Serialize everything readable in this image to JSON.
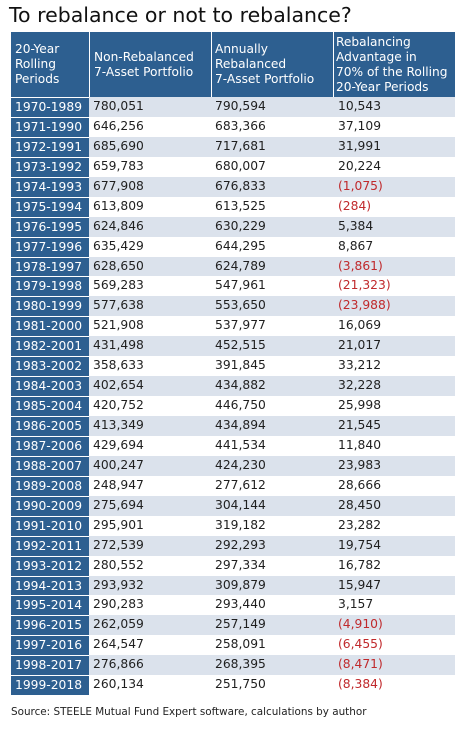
{
  "title": "To rebalance or not to rebalance?",
  "chart_data": {
    "type": "table",
    "columns": [
      "20-Year Rolling Periods",
      "Non-Rebalanced 7-Asset Portfolio",
      "Annually Rebalanced 7-Asset Portfolio",
      "Rebalancing Advantage in 70% of the Rolling 20-Year Periods"
    ],
    "header_lines": [
      [
        "20-Year",
        "Rolling",
        "Periods"
      ],
      [
        "Non-Rebalanced",
        "7-Asset Portfolio"
      ],
      [
        "Annually",
        "Rebalanced",
        "7-Asset Portfolio"
      ],
      [
        "Rebalancing",
        "Advantage in",
        "70% of the Rolling",
        "20-Year Periods"
      ]
    ],
    "rows": [
      [
        "1970-1989",
        "780,051",
        "790,594",
        "10,543"
      ],
      [
        "1971-1990",
        "646,256",
        "683,366",
        "37,109"
      ],
      [
        "1972-1991",
        "685,690",
        "717,681",
        "31,991"
      ],
      [
        "1973-1992",
        "659,783",
        "680,007",
        "20,224"
      ],
      [
        "1974-1993",
        "677,908",
        "676,833",
        "(1,075)"
      ],
      [
        "1975-1994",
        "613,809",
        "613,525",
        "(284)"
      ],
      [
        "1976-1995",
        "624,846",
        "630,229",
        "5,384"
      ],
      [
        "1977-1996",
        "635,429",
        "644,295",
        "8,867"
      ],
      [
        "1978-1997",
        "628,650",
        "624,789",
        "(3,861)"
      ],
      [
        "1979-1998",
        "569,283",
        "547,961",
        "(21,323)"
      ],
      [
        "1980-1999",
        "577,638",
        "553,650",
        "(23,988)"
      ],
      [
        "1981-2000",
        "521,908",
        "537,977",
        "16,069"
      ],
      [
        "1982-2001",
        "431,498",
        "452,515",
        "21,017"
      ],
      [
        "1983-2002",
        "358,633",
        "391,845",
        "33,212"
      ],
      [
        "1984-2003",
        "402,654",
        "434,882",
        "32,228"
      ],
      [
        "1985-2004",
        "420,752",
        "446,750",
        "25,998"
      ],
      [
        "1986-2005",
        "413,349",
        "434,894",
        "21,545"
      ],
      [
        "1987-2006",
        "429,694",
        "441,534",
        "11,840"
      ],
      [
        "1988-2007",
        "400,247",
        "424,230",
        "23,983"
      ],
      [
        "1989-2008",
        "248,947",
        "277,612",
        "28,666"
      ],
      [
        "1990-2009",
        "275,694",
        "304,144",
        "28,450"
      ],
      [
        "1991-2010",
        "295,901",
        "319,182",
        "23,282"
      ],
      [
        "1992-2011",
        "272,539",
        "292,293",
        "19,754"
      ],
      [
        "1993-2012",
        "280,552",
        "297,334",
        "16,782"
      ],
      [
        "1994-2013",
        "293,932",
        "309,879",
        "15,947"
      ],
      [
        "1995-2014",
        "290,283",
        "293,440",
        "3,157"
      ],
      [
        "1996-2015",
        "262,059",
        "257,149",
        "(4,910)"
      ],
      [
        "1997-2016",
        "264,547",
        "258,091",
        "(6,455)"
      ],
      [
        "1998-2017",
        "276,866",
        "268,395",
        "(8,471)"
      ],
      [
        "1999-2018",
        "260,134",
        "251,750",
        "(8,384)"
      ]
    ],
    "colors": {
      "header_bg": "#2d5f90",
      "header_text": "#ffffff",
      "band": "#dbe2ec",
      "negative": "#c0292c"
    }
  },
  "source": "Source: STEELE Mutual Fund Expert software, calculations by author"
}
